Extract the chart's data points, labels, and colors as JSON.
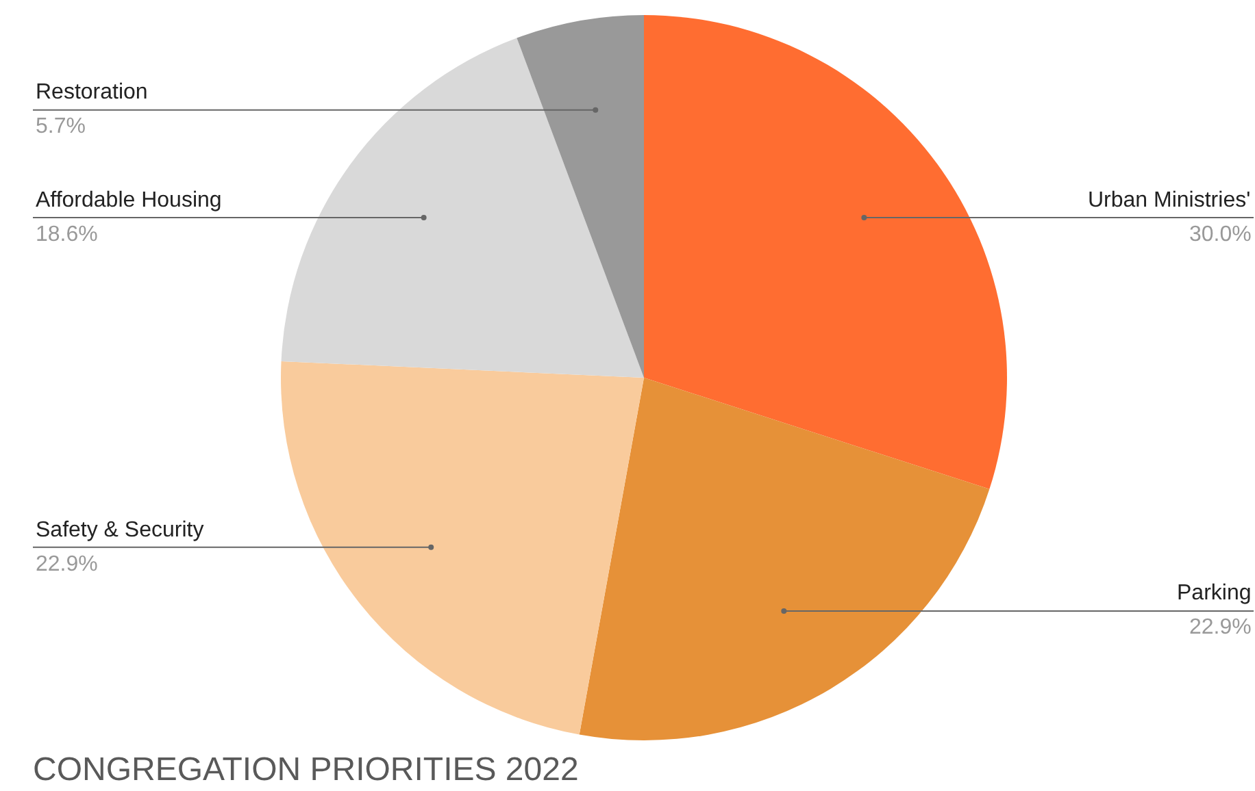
{
  "chart_data": {
    "type": "pie",
    "title": "CONGREGATION PRIORITIES 2022",
    "categories": [
      "Urban Ministries'",
      "Parking",
      "Safety & Security",
      "Affordable Housing",
      "Restoration"
    ],
    "values": [
      30.0,
      22.9,
      22.9,
      18.6,
      5.7
    ],
    "value_labels": [
      "30.0%",
      "22.9%",
      "22.9%",
      "18.6%",
      "5.7%"
    ],
    "colors": [
      "#ff6d31",
      "#e69138",
      "#f9cb9c",
      "#d9d9d9",
      "#999999"
    ],
    "legend": false
  }
}
